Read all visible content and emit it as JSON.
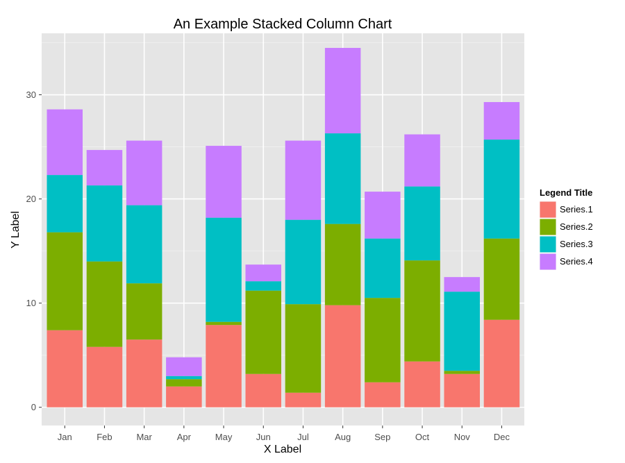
{
  "chart_data": {
    "type": "bar",
    "stacked": true,
    "title": "An Example Stacked Column Chart",
    "xlabel": "X Label",
    "ylabel": "Y Label",
    "ylim": [
      0,
      36
    ],
    "yticks": [
      0,
      10,
      20,
      30
    ],
    "grid": true,
    "legend": {
      "title": "Legend Title",
      "position": "right"
    },
    "categories": [
      "Jan",
      "Feb",
      "Mar",
      "Apr",
      "May",
      "Jun",
      "Jul",
      "Aug",
      "Sep",
      "Oct",
      "Nov",
      "Dec"
    ],
    "series": [
      {
        "name": "Series.1",
        "color": "#F8766D",
        "values": [
          7.4,
          5.8,
          6.5,
          2.0,
          7.9,
          3.2,
          1.4,
          9.8,
          2.4,
          4.4,
          3.2,
          8.4
        ]
      },
      {
        "name": "Series.2",
        "color": "#7CAE00",
        "values": [
          9.4,
          8.2,
          5.4,
          0.7,
          0.3,
          8.0,
          8.5,
          7.8,
          8.1,
          9.7,
          0.3,
          7.8
        ]
      },
      {
        "name": "Series.3",
        "color": "#00BFC4",
        "values": [
          5.5,
          7.3,
          7.5,
          0.3,
          10.0,
          0.9,
          8.1,
          8.7,
          5.7,
          7.1,
          7.6,
          9.5
        ]
      },
      {
        "name": "Series.4",
        "color": "#C77CFF",
        "values": [
          6.3,
          3.4,
          6.2,
          1.8,
          6.9,
          1.6,
          7.6,
          8.2,
          4.5,
          5.0,
          1.4,
          3.6
        ]
      }
    ]
  }
}
